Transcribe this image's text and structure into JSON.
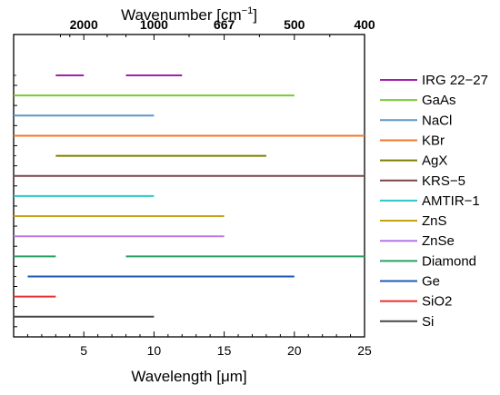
{
  "chart_data": {
    "type": "range-bar",
    "xlabel": "Wavelength [μm]",
    "x_ticks": [
      5,
      10,
      15,
      20,
      25
    ],
    "xlim": [
      0,
      25
    ],
    "top_axis": {
      "label_base": "Wavenumber [cm",
      "label_sup": "−1",
      "label_tail": "]",
      "ticks": [
        {
          "label": "2000",
          "wavelength": 5
        },
        {
          "label": "1000",
          "wavelength": 10
        },
        {
          "label": "667",
          "wavelength": 15
        },
        {
          "label": "500",
          "wavelength": 20
        },
        {
          "label": "400",
          "wavelength": 25
        }
      ]
    },
    "series": [
      {
        "name": "IRG 22−27",
        "color": "#a020a8",
        "segments": [
          [
            3,
            5
          ],
          [
            8,
            12
          ]
        ]
      },
      {
        "name": "GaAs",
        "color": "#7cc832",
        "segments": [
          [
            0,
            20
          ]
        ]
      },
      {
        "name": "NaCl",
        "color": "#5a96c8",
        "segments": [
          [
            0,
            10
          ]
        ]
      },
      {
        "name": "KBr",
        "color": "#f07828",
        "segments": [
          [
            0,
            25
          ]
        ]
      },
      {
        "name": "AgX",
        "color": "#7d7d00",
        "segments": [
          [
            3,
            18
          ]
        ]
      },
      {
        "name": "KRS−5",
        "color": "#784646",
        "segments": [
          [
            0,
            25
          ]
        ]
      },
      {
        "name": "AMTIR−1",
        "color": "#28c8c8",
        "segments": [
          [
            0,
            10
          ]
        ]
      },
      {
        "name": "ZnS",
        "color": "#c8a014",
        "segments": [
          [
            0,
            15
          ]
        ]
      },
      {
        "name": "ZnSe",
        "color": "#b478e6",
        "segments": [
          [
            0,
            15
          ]
        ]
      },
      {
        "name": "Diamond",
        "color": "#28a064",
        "segments": [
          [
            0,
            3
          ],
          [
            8,
            25
          ]
        ]
      },
      {
        "name": "Ge",
        "color": "#1e5ab4",
        "segments": [
          [
            1,
            20
          ]
        ]
      },
      {
        "name": "SiO2",
        "color": "#e63232",
        "segments": [
          [
            0,
            3
          ]
        ]
      },
      {
        "name": "Si",
        "color": "#464646",
        "segments": [
          [
            0,
            10
          ]
        ]
      }
    ]
  }
}
